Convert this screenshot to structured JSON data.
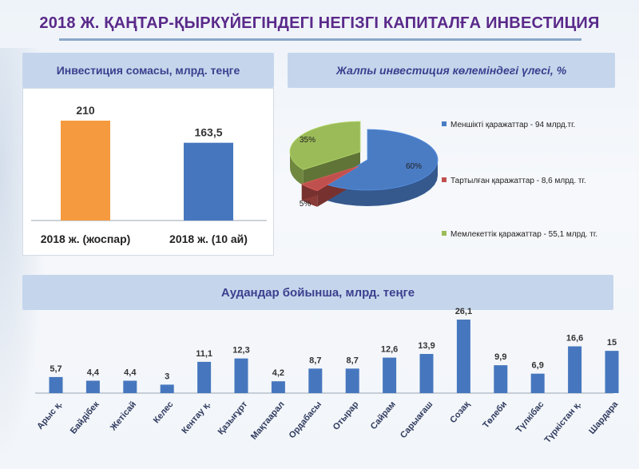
{
  "title": "2018 Ж. ҚАҢТАР-ҚЫРКҮЙЕГІНДЕГІ НЕГІЗГІ КАПИТАЛҒА ИНВЕСТИЦИЯ",
  "colors": {
    "title": "#5a2a8a",
    "header_bg": "#c5d6ec",
    "header_text": "#3b3f8e",
    "bar_orange": "#f59a3f",
    "bar_blue": "#4677be",
    "pie_blue": "#4a7cc4",
    "pie_red": "#c0504d",
    "pie_green": "#9bbb59"
  },
  "chart_data": [
    {
      "type": "bar",
      "title": "Инвестиция сомасы, млрд. теңге",
      "categories": [
        "2018 ж. (жоспар)",
        "2018 ж. (10 ай)"
      ],
      "values": [
        210,
        163.5
      ],
      "value_labels": [
        "210",
        "163,5"
      ],
      "colors": [
        "#f59a3f",
        "#4677be"
      ],
      "ylim": [
        0,
        210
      ]
    },
    {
      "type": "pie",
      "title": "Жалпы инвестиция көлеміндегі үлесі, %",
      "legend_position": "right",
      "slices": [
        {
          "label": "Меншікті қаражаттар - 94 млрд.тг.",
          "value": 60,
          "percent_label": "60%",
          "color": "#4a7cc4"
        },
        {
          "label": "Тартылған қаражаттар - 8,6 млрд. тг.",
          "value": 5,
          "percent_label": "5%",
          "color": "#c0504d"
        },
        {
          "label": "Мемлекеттік қаражаттар - 55,1 млрд. тг.",
          "value": 35,
          "percent_label": "35%",
          "color": "#9bbb59"
        }
      ]
    },
    {
      "type": "bar",
      "title": "Аудандар бойынша, млрд. теңге",
      "categories": [
        "Арыс қ.",
        "Байдібек",
        "Жетісай",
        "Келес",
        "Кентау қ.",
        "Қазығұрт",
        "Мақтаарал",
        "Ордабасы",
        "Отырар",
        "Сайрам",
        "Сарыағаш",
        "Созақ",
        "Төлеби",
        "Түлкібас",
        "Түркістан қ.",
        "Шардара"
      ],
      "values": [
        5.7,
        4.4,
        4.4,
        3,
        11.1,
        12.3,
        4.2,
        8.7,
        8.7,
        12.6,
        13.9,
        26.1,
        9.9,
        6.9,
        16.6,
        15
      ],
      "value_labels": [
        "5,7",
        "4,4",
        "4,4",
        "3",
        "11,1",
        "12,3",
        "4,2",
        "8,7",
        "8,7",
        "12,6",
        "13,9",
        "26,1",
        "9,9",
        "6,9",
        "16,6",
        "15"
      ],
      "color": "#4677be",
      "ylim": [
        0,
        26.1
      ]
    }
  ]
}
